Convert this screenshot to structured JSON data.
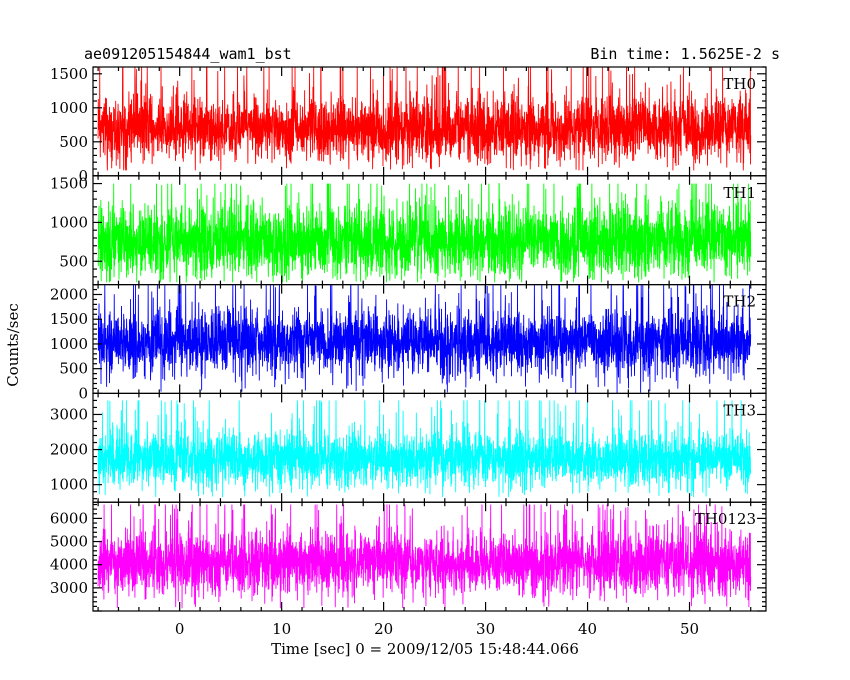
{
  "chart_data": {
    "type": "line",
    "title_left": "ae091205154844_wam1_bst",
    "title_right": "Bin time: 1.5625E-2 s",
    "xlabel": "Time [sec] 0 = 2009/12/05 15:48:44.066",
    "ylabel": "Counts/sec",
    "xlim": [
      -8.5,
      57.5
    ],
    "x_data_range": [
      -8,
      56
    ],
    "x_ticks": [
      0,
      10,
      20,
      30,
      40,
      50
    ],
    "panels": [
      {
        "name": "TH0",
        "color": "#ff0000",
        "ylim": [
          0,
          1600
        ],
        "y_ticks": [
          0,
          500,
          1000,
          1500
        ],
        "y_tick_labels": [
          "0",
          "500",
          "1000",
          "1500"
        ],
        "mean": 700,
        "spread": 230,
        "min": 80,
        "max": 1600
      },
      {
        "name": "TH1",
        "color": "#00ff00",
        "ylim": [
          200,
          1600
        ],
        "y_ticks": [
          500,
          1000,
          1500
        ],
        "y_tick_labels": [
          "500",
          "1000",
          "1500"
        ],
        "mean": 760,
        "spread": 230,
        "min": 230,
        "max": 1500
      },
      {
        "name": "TH2",
        "color": "#0000ff",
        "ylim": [
          0,
          2200
        ],
        "y_ticks": [
          0,
          500,
          1000,
          1500,
          2000
        ],
        "y_tick_labels": [
          "0",
          "500",
          "1000",
          "1500",
          "2000"
        ],
        "mean": 1050,
        "spread": 320,
        "min": 0,
        "max": 2200
      },
      {
        "name": "TH3",
        "color": "#00ffff",
        "ylim": [
          500,
          3600
        ],
        "y_ticks": [
          1000,
          2000,
          3000
        ],
        "y_tick_labels": [
          "1000",
          "2000",
          "3000"
        ],
        "mean": 1750,
        "spread": 380,
        "min": 650,
        "max": 3400
      },
      {
        "name": "TH0123",
        "color": "#ff00ff",
        "ylim": [
          2000,
          6700
        ],
        "y_ticks": [
          3000,
          4000,
          5000,
          6000
        ],
        "y_tick_labels": [
          "3000",
          "4000",
          "5000",
          "6000"
        ],
        "mean": 4100,
        "spread": 650,
        "min": 2050,
        "max": 6600
      }
    ]
  }
}
